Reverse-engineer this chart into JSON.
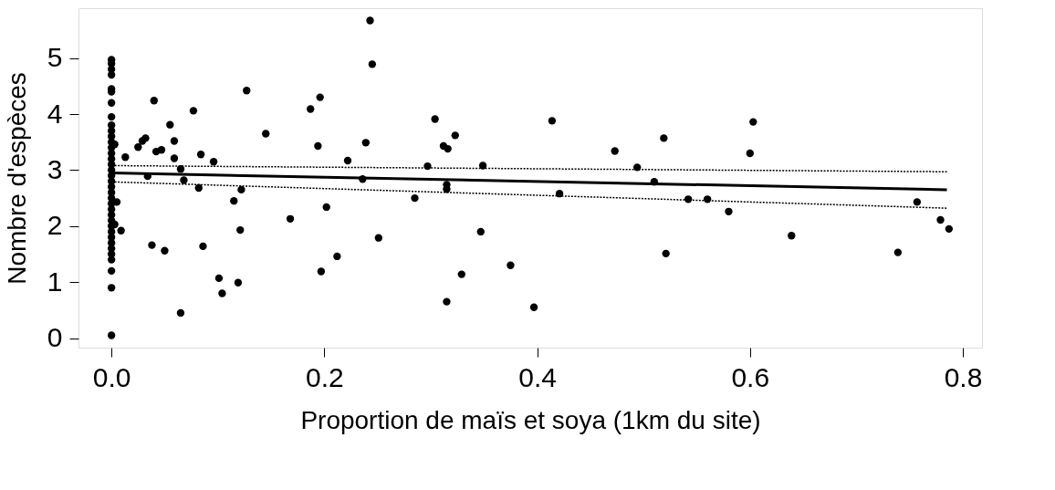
{
  "chart_data": {
    "type": "scatter",
    "xlabel": "Proportion de maïs et soya (1km du site)",
    "ylabel": "Nombre d'espèces",
    "xlim": [
      -0.031,
      0.818
    ],
    "ylim": [
      -0.17,
      5.89
    ],
    "xticks": [
      {
        "value": 0,
        "label": "0.0"
      },
      0.2,
      0.4,
      0.6,
      0.8
    ],
    "yticks": [
      0,
      1,
      2,
      3,
      4,
      5
    ],
    "grid": false,
    "series": [
      {
        "color": "#000000",
        "marker": "circle",
        "x": [
          0,
          0,
          0,
          0,
          0,
          0,
          0,
          0,
          0,
          0,
          0,
          0,
          0,
          0,
          0,
          0,
          0,
          0,
          0,
          0,
          0,
          0,
          0,
          0,
          0,
          0,
          0,
          0,
          0,
          0,
          0,
          0,
          0,
          0,
          0,
          0,
          0.003,
          0.013,
          0.005,
          0.003,
          0.009,
          0.025,
          0.029,
          0.032,
          0.034,
          0.04,
          0.038,
          0.042,
          0.047,
          0.05,
          0.055,
          0.059,
          0.059,
          0.065,
          0.068,
          0.065,
          0.077,
          0.084,
          0.082,
          0.086,
          0.096,
          0.101,
          0.104,
          0.115,
          0.122,
          0.121,
          0.119,
          0.127,
          0.145,
          0.168,
          0.187,
          0.196,
          0.194,
          0.202,
          0.197,
          0.212,
          0.222,
          0.239,
          0.236,
          0.243,
          0.245,
          0.251,
          0.285,
          0.297,
          0.304,
          0.323,
          0.312,
          0.316,
          0.315,
          0.315,
          0.315,
          0.329,
          0.347,
          0.349,
          0.375,
          0.397,
          0.414,
          0.421,
          0.473,
          0.494,
          0.51,
          0.519,
          0.521,
          0.542,
          0.56,
          0.58,
          0.6,
          0.603,
          0.639,
          0.739,
          0.757,
          0.779,
          0.787
        ],
        "values": [
          4.97,
          4.9,
          4.8,
          4.7,
          4.45,
          4.4,
          4.2,
          3.95,
          3.8,
          3.7,
          3.6,
          3.5,
          3.4,
          3.3,
          3.2,
          3.1,
          3.0,
          2.9,
          2.8,
          2.7,
          2.6,
          2.5,
          2.4,
          2.3,
          2.2,
          2.1,
          2.0,
          1.9,
          1.8,
          1.7,
          1.6,
          1.5,
          1.4,
          1.2,
          0.9,
          0.05,
          3.46,
          3.23,
          2.43,
          2.03,
          1.92,
          3.41,
          3.52,
          3.57,
          2.89,
          4.24,
          1.66,
          3.33,
          3.36,
          1.56,
          3.81,
          3.52,
          3.21,
          3.02,
          2.82,
          0.45,
          4.06,
          3.28,
          2.68,
          1.64,
          3.15,
          1.07,
          0.8,
          2.45,
          2.65,
          1.93,
          0.99,
          4.42,
          3.65,
          2.13,
          4.09,
          4.3,
          3.43,
          2.34,
          1.19,
          1.46,
          3.17,
          3.49,
          2.84,
          5.67,
          4.89,
          1.79,
          2.5,
          3.07,
          3.91,
          3.62,
          3.43,
          3.38,
          2.74,
          2.66,
          0.65,
          1.14,
          1.9,
          3.08,
          1.3,
          0.55,
          3.88,
          2.58,
          3.34,
          3.05,
          2.79,
          3.57,
          1.51,
          2.48,
          2.48,
          2.26,
          3.3,
          3.86,
          1.83,
          1.53,
          2.43,
          2.11,
          1.95
        ]
      },
      {
        "type": "line",
        "color": "#000000",
        "line_style": "solid",
        "x": [
          0,
          0.785
        ],
        "values": [
          2.95,
          2.65
        ]
      },
      {
        "type": "line",
        "color": "#000000",
        "line_style": "dotted",
        "x": [
          0,
          0.785
        ],
        "values": [
          3.08,
          2.97
        ]
      },
      {
        "type": "line",
        "color": "#000000",
        "line_style": "dotted",
        "x": [
          0,
          0.785
        ],
        "values": [
          2.79,
          2.32
        ]
      }
    ]
  }
}
